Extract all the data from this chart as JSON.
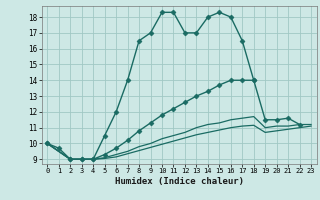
{
  "title": "",
  "xlabel": "Humidex (Indice chaleur)",
  "xlim": [
    -0.5,
    23.5
  ],
  "ylim": [
    8.7,
    18.7
  ],
  "yticks": [
    9,
    10,
    11,
    12,
    13,
    14,
    15,
    16,
    17,
    18
  ],
  "xticks": [
    0,
    1,
    2,
    3,
    4,
    5,
    6,
    7,
    8,
    9,
    10,
    11,
    12,
    13,
    14,
    15,
    16,
    17,
    18,
    19,
    20,
    21,
    22,
    23
  ],
  "background_color": "#cde8e5",
  "grid_color": "#a0c8c4",
  "line_color": "#1a6b63",
  "lines": [
    {
      "x": [
        0,
        1,
        2,
        3,
        4,
        5,
        6,
        7,
        8,
        9,
        10,
        11,
        12,
        13,
        14,
        15,
        16,
        17,
        18
      ],
      "y": [
        10.0,
        9.7,
        9.0,
        9.0,
        9.0,
        10.5,
        12.0,
        14.0,
        16.5,
        17.0,
        18.3,
        18.3,
        17.0,
        17.0,
        18.0,
        18.3,
        18.0,
        16.5,
        14.0
      ],
      "marker": "D",
      "markersize": 2.5,
      "linewidth": 1.0,
      "dashed": false
    },
    {
      "x": [
        0,
        2,
        3,
        4,
        5,
        6,
        7,
        8,
        9,
        10,
        11,
        12,
        13,
        14,
        15,
        16,
        17,
        18,
        19,
        20,
        21,
        22
      ],
      "y": [
        10.0,
        9.0,
        9.0,
        9.0,
        9.3,
        9.7,
        10.2,
        10.8,
        11.3,
        11.8,
        12.2,
        12.6,
        13.0,
        13.3,
        13.7,
        14.0,
        14.0,
        14.0,
        11.5,
        11.5,
        11.6,
        11.2
      ],
      "marker": "D",
      "markersize": 2.5,
      "linewidth": 1.0,
      "dashed": false
    },
    {
      "x": [
        0,
        2,
        3,
        4,
        5,
        6,
        7,
        8,
        9,
        10,
        11,
        12,
        13,
        14,
        15,
        16,
        17,
        18,
        19,
        20,
        21,
        22,
        23
      ],
      "y": [
        10.0,
        9.0,
        9.0,
        9.0,
        9.1,
        9.3,
        9.5,
        9.8,
        10.0,
        10.3,
        10.5,
        10.7,
        11.0,
        11.2,
        11.3,
        11.5,
        11.6,
        11.7,
        11.0,
        11.1,
        11.1,
        11.2,
        11.2
      ],
      "marker": null,
      "markersize": 0,
      "linewidth": 0.9,
      "dashed": false
    },
    {
      "x": [
        0,
        2,
        3,
        4,
        5,
        6,
        7,
        8,
        9,
        10,
        11,
        12,
        13,
        14,
        15,
        16,
        17,
        18,
        19,
        20,
        21,
        22,
        23
      ],
      "y": [
        10.0,
        9.0,
        9.0,
        9.0,
        9.05,
        9.15,
        9.35,
        9.55,
        9.75,
        9.95,
        10.15,
        10.35,
        10.55,
        10.7,
        10.85,
        11.0,
        11.1,
        11.15,
        10.7,
        10.8,
        10.9,
        11.0,
        11.1
      ],
      "marker": null,
      "markersize": 0,
      "linewidth": 0.9,
      "dashed": false
    }
  ]
}
